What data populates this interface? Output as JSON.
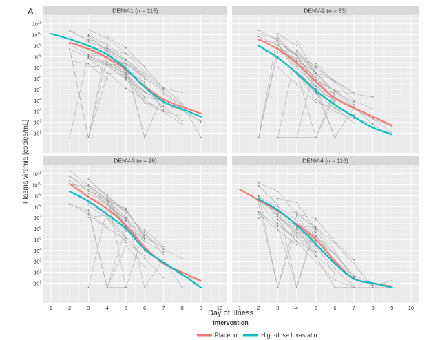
{
  "panel_letter": "A",
  "y_axis_label": "Plasma viremia [copies/mL]",
  "x_axis_label": "Day of Illness",
  "legend": {
    "title": "Intervention",
    "items": [
      {
        "label": "Placebo",
        "color": "#F8766D"
      },
      {
        "label": "High-dose lovastatin",
        "color": "#00BFC4"
      }
    ]
  },
  "colors": {
    "panel_bg": "#EBEBEB",
    "strip_bg": "#D9D9D9",
    "grid": "#FFFFFF",
    "individual": "#A6A6A6"
  },
  "chart_data": {
    "type": "line",
    "facet_layout": "2x2",
    "x_ticks": [
      1,
      2,
      3,
      4,
      5,
      6,
      7,
      8,
      9,
      10
    ],
    "y_tick_exponents": [
      1,
      2,
      3,
      4,
      5,
      6,
      7,
      8,
      9,
      10,
      11
    ],
    "y_scale": "log10",
    "xlim": [
      0.6,
      10.4
    ],
    "ylim_log10": [
      -0.8,
      11.8
    ],
    "grid": true,
    "panels": [
      {
        "title": "DENV-1 (n = 115)",
        "series": [
          {
            "name": "Placebo",
            "x": [
              2,
              3,
              4,
              5,
              6,
              7,
              8,
              9
            ],
            "y_log10": [
              9.3,
              8.7,
              7.9,
              6.8,
              5.3,
              4.1,
              3.4,
              2.8
            ]
          },
          {
            "name": "High-dose lovastatin",
            "x": [
              1,
              2,
              3,
              4,
              5,
              6,
              7,
              8,
              9
            ],
            "y_log10": [
              10.1,
              9.6,
              9.0,
              8.2,
              6.9,
              5.2,
              3.9,
              3.2,
              2.5
            ]
          }
        ]
      },
      {
        "title": "DENV-2 (n = 33)",
        "series": [
          {
            "name": "Placebo",
            "x": [
              2,
              3,
              4,
              5,
              6,
              7,
              8,
              9
            ],
            "y_log10": [
              9.6,
              8.7,
              7.4,
              5.7,
              4.2,
              3.3,
              2.5,
              1.7
            ]
          },
          {
            "name": "High-dose lovastatin",
            "x": [
              2,
              3,
              4,
              5,
              6,
              7,
              8,
              9
            ],
            "y_log10": [
              9.0,
              7.9,
              6.5,
              4.9,
              3.6,
              2.5,
              1.5,
              0.9
            ]
          }
        ]
      },
      {
        "title": "DENV-3 (n = 28)",
        "series": [
          {
            "name": "Placebo",
            "x": [
              2,
              3,
              4,
              5,
              6,
              7,
              8,
              9
            ],
            "y_log10": [
              10.1,
              8.9,
              7.8,
              6.3,
              4.3,
              2.8,
              2.0,
              1.2
            ]
          },
          {
            "name": "High-dose lovastatin",
            "x": [
              2,
              3,
              4,
              5,
              6,
              7,
              8,
              9
            ],
            "y_log10": [
              9.4,
              8.5,
              7.3,
              6.0,
              4.1,
              2.9,
              1.8,
              0.6
            ]
          }
        ]
      },
      {
        "title": "DENV-4 (n = 116)",
        "series": [
          {
            "name": "Placebo",
            "x": [
              1,
              2,
              3,
              4,
              5,
              6,
              7,
              8,
              9
            ],
            "y_log10": [
              9.6,
              8.6,
              7.6,
              6.4,
              5.0,
              3.0,
              1.4,
              1.0,
              0.7
            ]
          },
          {
            "name": "High-dose lovastatin",
            "x": [
              2,
              3,
              4,
              5,
              6,
              7,
              8,
              9
            ],
            "y_log10": [
              8.7,
              7.7,
              6.3,
              4.6,
              2.8,
              1.4,
              1.0,
              0.6
            ]
          }
        ]
      }
    ]
  }
}
